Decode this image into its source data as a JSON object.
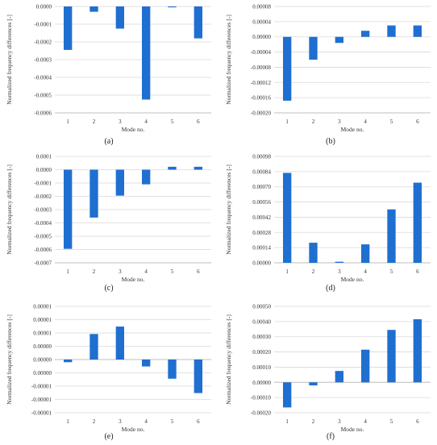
{
  "style": {
    "bar_color": "#1f6fd1",
    "grid_color": "#d9d9d9",
    "axis_color": "#bfbfbf"
  },
  "chart_data": [
    {
      "type": "bar",
      "panel": "(a)",
      "categories": [
        "1",
        "2",
        "3",
        "4",
        "5",
        "6"
      ],
      "values": [
        -0.000245,
        -3e-05,
        -0.000125,
        -0.000525,
        -5e-06,
        -0.00018
      ],
      "yticks": [
        "-0.0006",
        "-0.0005",
        "-0.0004",
        "-0.0003",
        "-0.0002",
        "-0.0001",
        "0.0000"
      ],
      "ylim": [
        -0.0006,
        0.0
      ],
      "xlabel": "Mode no.",
      "ylabel": "Normalized  frequency  differences  [-]",
      "xaxis_at_zero": false
    },
    {
      "type": "bar",
      "panel": "(b)",
      "categories": [
        "1",
        "2",
        "3",
        "4",
        "5",
        "6"
      ],
      "values": [
        -0.000168,
        -6e-05,
        -1.6e-05,
        1.6e-05,
        3e-05,
        3e-05
      ],
      "yticks": [
        "-0.00020",
        "-0.00016",
        "-0.00012",
        "-0.00008",
        "-0.00004",
        "0.00000",
        "0.00004",
        "0.00008"
      ],
      "ylim": [
        -0.0002,
        8e-05
      ],
      "xlabel": "Mode no.",
      "ylabel": "Normalized  frequency  differences  [-]",
      "xaxis_at_zero": false
    },
    {
      "type": "bar",
      "panel": "(c)",
      "categories": [
        "1",
        "2",
        "3",
        "4",
        "5",
        "6"
      ],
      "values": [
        -0.000595,
        -0.00036,
        -0.000195,
        -0.00011,
        2.2e-05,
        2.2e-05
      ],
      "yticks": [
        "-0.0007",
        "-0.0006",
        "-0.0005",
        "-0.0004",
        "-0.0003",
        "-0.0002",
        "-0.0001",
        "0.0000",
        "0.0001"
      ],
      "ylim": [
        -0.0007,
        0.0001
      ],
      "xlabel": "Mode no.",
      "ylabel": "Normalized  frequency  differences  [-]",
      "xaxis_at_zero": false
    },
    {
      "type": "bar",
      "panel": "(d)",
      "categories": [
        "1",
        "2",
        "3",
        "4",
        "5",
        "6"
      ],
      "values": [
        0.000828,
        0.000185,
        1e-05,
        0.00017,
        0.000492,
        0.000738
      ],
      "yticks": [
        "0.00000",
        "0.00014",
        "0.00028",
        "0.00042",
        "0.00056",
        "0.00070",
        "0.00084",
        "0.00098"
      ],
      "ylim": [
        0.0,
        0.00098
      ],
      "xlabel": "Mode no.",
      "ylabel": "Normalized  frequency  differences  [-]",
      "xaxis_at_zero": false
    },
    {
      "type": "bar",
      "panel": "(e)",
      "categories": [
        "1",
        "2",
        "3",
        "4",
        "5",
        "6"
      ],
      "values": [
        -5e-07,
        4.8e-06,
        6.2e-06,
        -1.3e-06,
        -3.6e-06,
        -6.3e-06
      ],
      "yticks": [
        "-0.00001",
        "-0.00001",
        "-0.00001",
        "0.00000",
        "0.00000",
        "0.00000",
        "0.00001",
        "0.00001",
        "0.00001"
      ],
      "ylim": [
        -1e-05,
        1e-05
      ],
      "xlabel": "Mode no.",
      "ylabel": "Normalized  frequency  differences  [-]",
      "xaxis_at_zero": true
    },
    {
      "type": "bar",
      "panel": "(f)",
      "categories": [
        "1",
        "2",
        "3",
        "4",
        "5",
        "6"
      ],
      "values": [
        -0.000165,
        -2e-05,
        7.5e-05,
        0.000215,
        0.000345,
        0.000415
      ],
      "yticks": [
        "-0.00020",
        "-0.00010",
        "0.00000",
        "0.00010",
        "0.00020",
        "0.00030",
        "0.00040",
        "0.00050"
      ],
      "ylim": [
        -0.0002,
        0.0005
      ],
      "xlabel": "Mode no.",
      "ylabel": "Normalized  frequency  differences  [-]",
      "xaxis_at_zero": true
    }
  ]
}
